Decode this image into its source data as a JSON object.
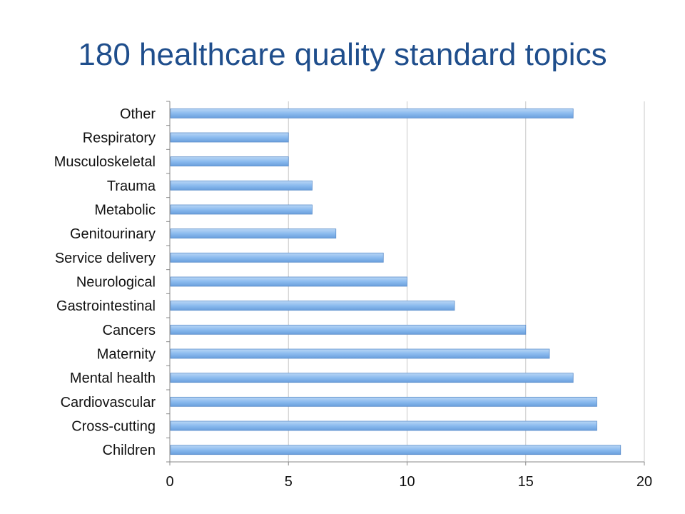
{
  "title": "180 healthcare quality standard topics",
  "colors": {
    "title": "#1f4e8c",
    "bar_fill": "#8bbbef",
    "bar_edge": "#5e8fcb",
    "grid": "#c8c8c8",
    "axis": "#888888"
  },
  "chart_data": {
    "type": "bar",
    "orientation": "horizontal",
    "categories": [
      "Other",
      "Respiratory",
      "Musculoskeletal",
      "Trauma",
      "Metabolic",
      "Genitourinary",
      "Service delivery",
      "Neurological",
      "Gastrointestinal",
      "Cancers",
      "Maternity",
      "Mental health",
      "Cardiovascular",
      "Cross-cutting",
      "Children"
    ],
    "values": [
      17,
      5,
      5,
      6,
      6,
      7,
      9,
      10,
      12,
      15,
      16,
      17,
      18,
      18,
      19
    ],
    "xlim": [
      0,
      20
    ],
    "xticks": [
      "0",
      "5",
      "10",
      "15",
      "20"
    ],
    "grid": true,
    "legend": "none"
  }
}
